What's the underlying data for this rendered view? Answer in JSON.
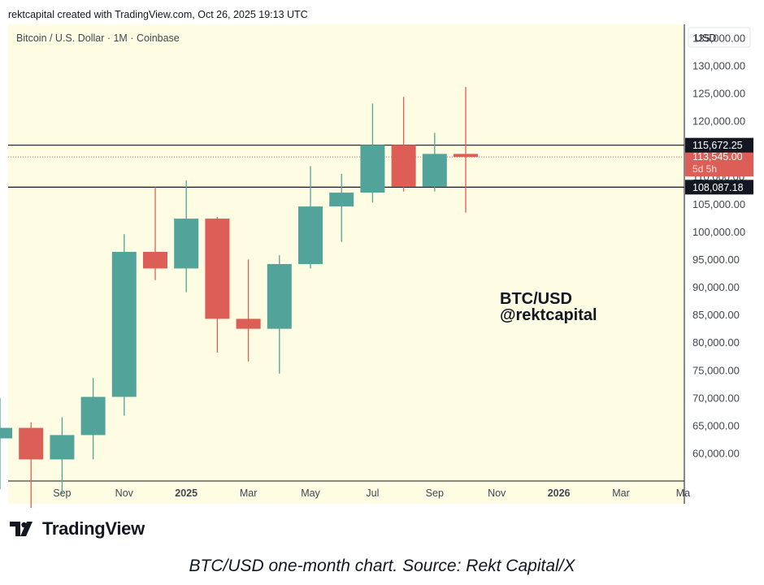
{
  "header": {
    "text": "rektcapital created with TradingView.com, Oct 26, 2025 19:13 UTC"
  },
  "chart_title": "Bitcoin / U.S. Dollar · 1M · Coinbase",
  "currency_label": "USD",
  "watermark": {
    "line1": "BTC/USD",
    "line2": "@rektcapital"
  },
  "logo_text": "TradingView",
  "caption": "BTC/USD one-month chart. Source: Rekt Capital/X",
  "colors": {
    "up": "#52a49a",
    "down": "#dd5e56",
    "background": "#fefce3",
    "axis_bg": "#ffffff"
  },
  "chart_data": {
    "type": "candlestick",
    "x_tick_labels": [
      "Sep",
      "Nov",
      "2025",
      "Mar",
      "May",
      "Jul",
      "Sep",
      "Nov",
      "2026",
      "Mar",
      "Ma"
    ],
    "y_tick_labels": [
      "135,000.00",
      "130,000.00",
      "125,000.00",
      "120,000.00",
      "115,000.00",
      "110,000.00",
      "105,000.00",
      "100,000.00",
      "95,000.00",
      "90,000.00",
      "85,000.00",
      "80,000.00",
      "75,000.00",
      "70,000.00",
      "65,000.00",
      "60,000.00"
    ],
    "ylim": [
      55000,
      137500
    ],
    "candles": [
      {
        "month": "2024-07",
        "open": 62700,
        "high": 70000,
        "low": 53500,
        "close": 64600
      },
      {
        "month": "2024-08",
        "open": 64600,
        "high": 65600,
        "low": 49500,
        "close": 58900
      },
      {
        "month": "2024-09",
        "open": 58900,
        "high": 66500,
        "low": 52600,
        "close": 63300
      },
      {
        "month": "2024-10",
        "open": 63300,
        "high": 73600,
        "low": 58900,
        "close": 70200
      },
      {
        "month": "2024-11",
        "open": 70200,
        "high": 99600,
        "low": 66800,
        "close": 96400
      },
      {
        "month": "2024-12",
        "open": 96400,
        "high": 108100,
        "low": 91300,
        "close": 93400
      },
      {
        "month": "2025-01",
        "open": 93400,
        "high": 109300,
        "low": 89100,
        "close": 102400
      },
      {
        "month": "2025-02",
        "open": 102400,
        "high": 102700,
        "low": 78200,
        "close": 84300
      },
      {
        "month": "2025-03",
        "open": 84300,
        "high": 95000,
        "low": 76600,
        "close": 82500
      },
      {
        "month": "2025-04",
        "open": 82500,
        "high": 95800,
        "low": 74400,
        "close": 94200
      },
      {
        "month": "2025-05",
        "open": 94200,
        "high": 111900,
        "low": 93400,
        "close": 104600
      },
      {
        "month": "2025-06",
        "open": 104600,
        "high": 110500,
        "low": 98200,
        "close": 107100
      },
      {
        "month": "2025-07",
        "open": 107100,
        "high": 123200,
        "low": 105300,
        "close": 115700
      },
      {
        "month": "2025-08",
        "open": 115700,
        "high": 124400,
        "low": 107300,
        "close": 108200
      },
      {
        "month": "2025-09",
        "open": 108200,
        "high": 117900,
        "low": 107300,
        "close": 114100
      },
      {
        "month": "2025-10",
        "open": 114100,
        "high": 126200,
        "low": 103500,
        "close": 113545
      }
    ],
    "horizontal_lines": [
      {
        "value": 115672.25,
        "label": "115,672.25"
      },
      {
        "value": 108087.18,
        "label": "108,087.18"
      }
    ],
    "last_price": {
      "value": 113545.0,
      "label": "113,545.00",
      "countdown": "5d 5h"
    }
  }
}
